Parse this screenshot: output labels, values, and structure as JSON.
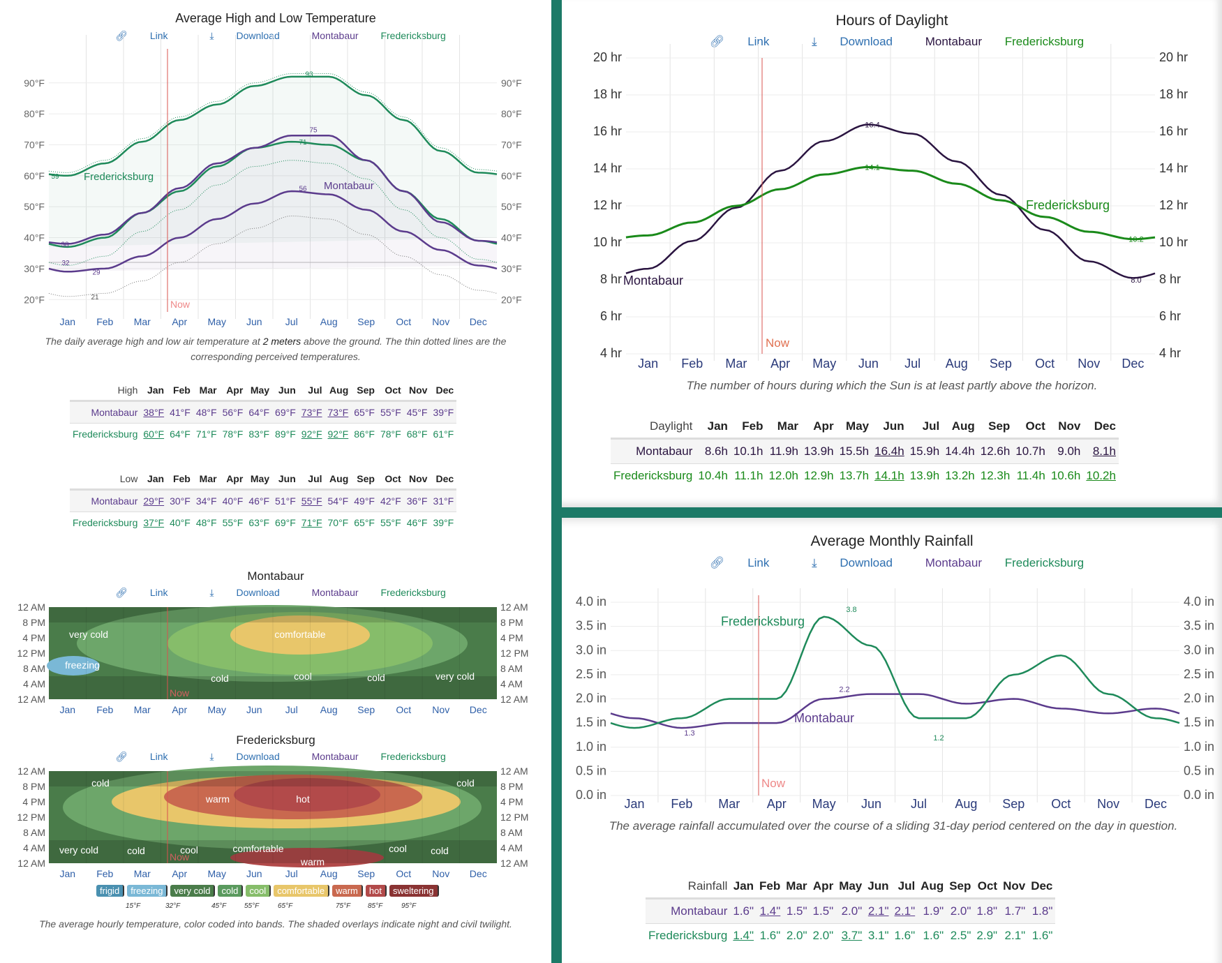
{
  "common": {
    "link_label": "Link",
    "download_label": "Download",
    "legend_montabaur": "Montabaur",
    "legend_fredericksburg": "Fredericksburg",
    "now_label": "Now",
    "months": [
      "Jan",
      "Feb",
      "Mar",
      "Apr",
      "May",
      "Jun",
      "Jul",
      "Aug",
      "Sep",
      "Oct",
      "Nov",
      "Dec"
    ],
    "colors": {
      "montabaur": "#5b3b8c",
      "fredericksburg": "#1e8a5a",
      "daylight_montabaur": "#2a1440",
      "daylight_fredericksburg": "#1a8a1a",
      "now": "#d9534f",
      "divider": "#1c7a67",
      "link": "#2e6fb0"
    }
  },
  "temperature": {
    "caption_pre": "The daily average high and low air temperature at ",
    "caption_em": "2 meters",
    "caption_post": " above the ground. The thin dotted lines are the corresponding perceived temperatures.",
    "high_table": {
      "label": "High",
      "rows": [
        {
          "name": "Montabaur",
          "values": [
            "38°F",
            "41°F",
            "48°F",
            "56°F",
            "64°F",
            "69°F",
            "73°F",
            "73°F",
            "65°F",
            "55°F",
            "45°F",
            "39°F"
          ],
          "underlined": [
            0,
            6,
            7
          ]
        },
        {
          "name": "Fredericksburg",
          "values": [
            "60°F",
            "64°F",
            "71°F",
            "78°F",
            "83°F",
            "89°F",
            "92°F",
            "92°F",
            "86°F",
            "78°F",
            "68°F",
            "61°F"
          ],
          "underlined": [
            0,
            6,
            7
          ]
        }
      ]
    },
    "low_table": {
      "label": "Low",
      "rows": [
        {
          "name": "Montabaur",
          "values": [
            "29°F",
            "30°F",
            "34°F",
            "40°F",
            "46°F",
            "51°F",
            "55°F",
            "54°F",
            "49°F",
            "42°F",
            "36°F",
            "31°F"
          ],
          "underlined": [
            0,
            6
          ]
        },
        {
          "name": "Fredericksburg",
          "values": [
            "37°F",
            "40°F",
            "48°F",
            "55°F",
            "63°F",
            "69°F",
            "71°F",
            "70°F",
            "65°F",
            "55°F",
            "46°F",
            "39°F"
          ],
          "underlined": [
            0,
            6
          ]
        }
      ]
    }
  },
  "heatmaps": {
    "montabaur_title": "Montabaur",
    "fredericksburg_title": "Fredericksburg",
    "hour_labels": [
      "12 AM",
      "8 PM",
      "4 PM",
      "12 PM",
      "8 AM",
      "4 AM",
      "12 AM"
    ],
    "montabaur_labels": [
      "very cold",
      "freezing",
      "comfortable",
      "cold",
      "cool",
      "cold",
      "very cold"
    ],
    "fredericksburg_labels": [
      "cold",
      "cold",
      "warm",
      "hot",
      "very cold",
      "cold",
      "cool",
      "comfortable",
      "cool",
      "cold",
      "warm"
    ],
    "bands": [
      {
        "label": "frigid",
        "color": "#4a90b0"
      },
      {
        "label": "freezing",
        "color": "#7ab8d6"
      },
      {
        "label": "very cold",
        "color": "#4a7c4a"
      },
      {
        "label": "cold",
        "color": "#5a9a5e"
      },
      {
        "label": "cool",
        "color": "#86bd6a"
      },
      {
        "label": "comfortable",
        "color": "#e8c66a"
      },
      {
        "label": "warm",
        "color": "#c9694f"
      },
      {
        "label": "hot",
        "color": "#b24a4a"
      },
      {
        "label": "sweltering",
        "color": "#8a3333"
      }
    ],
    "band_ticks": [
      "15°F",
      "32°F",
      "45°F",
      "55°F",
      "65°F",
      "75°F",
      "85°F",
      "95°F"
    ],
    "caption": "The average hourly temperature, color coded into bands. The shaded overlays indicate night and civil twilight."
  },
  "daylight": {
    "caption": "The number of hours during which the Sun is at least partly above the horizon.",
    "table": {
      "label": "Daylight",
      "rows": [
        {
          "name": "Montabaur",
          "values": [
            "8.6h",
            "10.1h",
            "11.9h",
            "13.9h",
            "15.5h",
            "16.4h",
            "15.9h",
            "14.4h",
            "12.6h",
            "10.7h",
            "9.0h",
            "8.1h"
          ],
          "underlined": [
            5,
            11
          ]
        },
        {
          "name": "Fredericksburg",
          "values": [
            "10.4h",
            "11.1h",
            "12.0h",
            "12.9h",
            "13.7h",
            "14.1h",
            "13.9h",
            "13.2h",
            "12.3h",
            "11.4h",
            "10.6h",
            "10.2h"
          ],
          "underlined": [
            5,
            11
          ]
        }
      ]
    }
  },
  "rainfall": {
    "caption": "The average rainfall accumulated over the course of a sliding 31-day period centered on the day in question.",
    "table": {
      "label": "Rainfall",
      "rows": [
        {
          "name": "Montabaur",
          "values": [
            "1.6\"",
            "1.4\"",
            "1.5\"",
            "1.5\"",
            "2.0\"",
            "2.1\"",
            "2.1\"",
            "1.9\"",
            "2.0\"",
            "1.8\"",
            "1.7\"",
            "1.8\""
          ],
          "underlined": [
            1,
            5,
            6
          ]
        },
        {
          "name": "Fredericksburg",
          "values": [
            "1.4\"",
            "1.6\"",
            "2.0\"",
            "2.0\"",
            "3.7\"",
            "3.1\"",
            "1.6\"",
            "1.6\"",
            "2.5\"",
            "2.9\"",
            "2.1\"",
            "1.6\""
          ],
          "underlined": [
            0,
            4
          ]
        }
      ]
    }
  },
  "chart_data": [
    {
      "type": "line",
      "title": "Average High and Low Temperature",
      "x": [
        "Jan",
        "Feb",
        "Mar",
        "Apr",
        "May",
        "Jun",
        "Jul",
        "Aug",
        "Sep",
        "Oct",
        "Nov",
        "Dec"
      ],
      "ylabel": "°F",
      "ylim": [
        15,
        100
      ],
      "yticks": [
        "20°F",
        "30°F",
        "40°F",
        "50°F",
        "60°F",
        "70°F",
        "80°F",
        "90°F"
      ],
      "grid": true,
      "now_month_position": 3.3,
      "series": [
        {
          "name": "Fredericksburg high",
          "color": "#1e8a5a",
          "values": [
            60,
            64,
            71,
            78,
            83,
            89,
            92,
            92,
            86,
            78,
            68,
            61
          ]
        },
        {
          "name": "Fredericksburg low",
          "color": "#1e8a5a",
          "values": [
            37,
            40,
            48,
            55,
            63,
            69,
            71,
            70,
            65,
            55,
            46,
            39
          ]
        },
        {
          "name": "Montabaur high",
          "color": "#5b3b8c",
          "values": [
            38,
            41,
            48,
            56,
            64,
            69,
            73,
            73,
            65,
            55,
            45,
            39
          ]
        },
        {
          "name": "Montabaur low",
          "color": "#5b3b8c",
          "values": [
            29,
            30,
            34,
            40,
            46,
            51,
            55,
            54,
            49,
            42,
            36,
            31
          ]
        }
      ],
      "annotations": [
        {
          "text": "93",
          "series": "Fredericksburg high peak"
        },
        {
          "text": "59",
          "series": "Fredericksburg high min"
        },
        {
          "text": "75",
          "series": "Montabaur high peak"
        },
        {
          "text": "71",
          "series": "Fredericksburg low peak"
        },
        {
          "text": "38",
          "series": "Montabaur high min"
        },
        {
          "text": "56",
          "series": "Montabaur low peak"
        },
        {
          "text": "29",
          "series": "Montabaur low min"
        },
        {
          "text": "32",
          "series": "freezing line"
        },
        {
          "text": "21",
          "series": "Montabaur perceived low min"
        },
        {
          "text": "Fredericksburg"
        },
        {
          "text": "Montabaur"
        }
      ]
    },
    {
      "type": "line",
      "title": "Hours of Daylight",
      "x": [
        "Jan",
        "Feb",
        "Mar",
        "Apr",
        "May",
        "Jun",
        "Jul",
        "Aug",
        "Sep",
        "Oct",
        "Nov",
        "Dec"
      ],
      "ylim": [
        4,
        20
      ],
      "yticks": [
        "4 hr",
        "6 hr",
        "8 hr",
        "10 hr",
        "12 hr",
        "14 hr",
        "16 hr",
        "18 hr",
        "20 hr"
      ],
      "grid": true,
      "now_month_position": 3.3,
      "series": [
        {
          "name": "Montabaur",
          "color": "#2a1440",
          "values": [
            8.6,
            10.1,
            11.9,
            13.9,
            15.5,
            16.4,
            15.9,
            14.4,
            12.6,
            10.7,
            9.0,
            8.1
          ]
        },
        {
          "name": "Fredericksburg",
          "color": "#1a8a1a",
          "values": [
            10.4,
            11.1,
            12.0,
            12.9,
            13.7,
            14.1,
            13.9,
            13.2,
            12.3,
            11.4,
            10.6,
            10.2
          ]
        }
      ],
      "annotations": [
        {
          "text": "16.4"
        },
        {
          "text": "14.1"
        },
        {
          "text": "10.2"
        },
        {
          "text": "8.0"
        },
        {
          "text": "Montabaur"
        },
        {
          "text": "Fredericksburg"
        }
      ]
    },
    {
      "type": "line",
      "title": "Average Monthly Rainfall",
      "x": [
        "Jan",
        "Feb",
        "Mar",
        "Apr",
        "May",
        "Jun",
        "Jul",
        "Aug",
        "Sep",
        "Oct",
        "Nov",
        "Dec"
      ],
      "ylim": [
        0,
        4
      ],
      "yticks": [
        "0.0 in",
        "0.5 in",
        "1.0 in",
        "1.5 in",
        "2.0 in",
        "2.5 in",
        "3.0 in",
        "3.5 in",
        "4.0 in"
      ],
      "grid": true,
      "now_month_position": 3.3,
      "series": [
        {
          "name": "Montabaur",
          "color": "#5b3b8c",
          "values": [
            1.6,
            1.4,
            1.5,
            1.5,
            2.0,
            2.1,
            2.1,
            1.9,
            2.0,
            1.8,
            1.7,
            1.8
          ]
        },
        {
          "name": "Fredericksburg",
          "color": "#1e8a5a",
          "values": [
            1.4,
            1.6,
            2.0,
            2.0,
            3.7,
            3.1,
            1.6,
            1.6,
            2.5,
            2.9,
            2.1,
            1.6
          ]
        }
      ],
      "annotations": [
        {
          "text": "3.8"
        },
        {
          "text": "2.2"
        },
        {
          "text": "1.3"
        },
        {
          "text": "1.2"
        },
        {
          "text": "Fredericksburg"
        },
        {
          "text": "Montabaur"
        }
      ]
    }
  ]
}
